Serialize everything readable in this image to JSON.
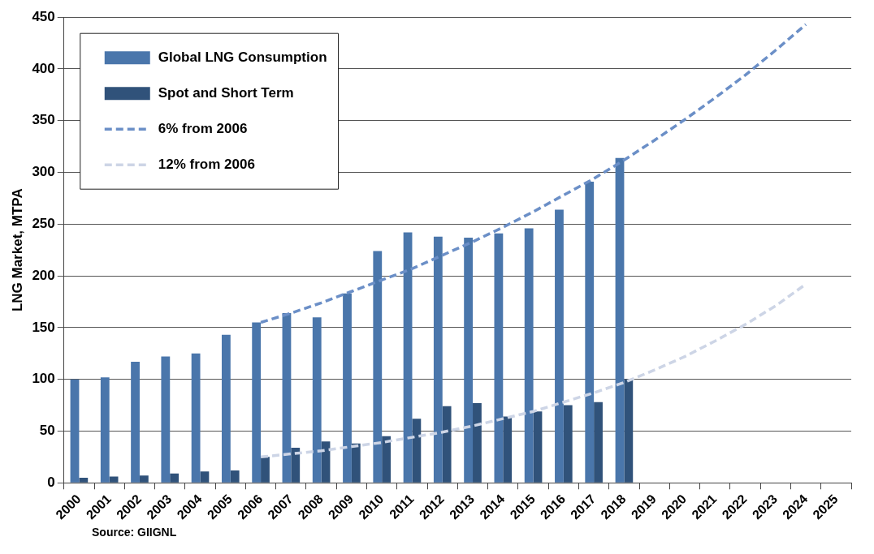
{
  "chart_data": {
    "type": "bar",
    "ylabel": "LNG Market, MTPA",
    "categories": [
      "2000",
      "2001",
      "2002",
      "2003",
      "2004",
      "2005",
      "2006",
      "2007",
      "2008",
      "2009",
      "2010",
      "2011",
      "2012",
      "2013",
      "2014",
      "2015",
      "2016",
      "2017",
      "2018",
      "2019",
      "2020",
      "2021",
      "2022",
      "2023",
      "2024",
      "2025"
    ],
    "series": [
      {
        "name": "Global LNG Consumption",
        "color": "#4a76ab",
        "values": [
          100,
          102,
          117,
          122,
          125,
          143,
          155,
          164,
          160,
          183,
          224,
          242,
          238,
          237,
          241,
          246,
          264,
          291,
          314,
          null,
          null,
          null,
          null,
          null,
          null,
          null
        ]
      },
      {
        "name": "Spot and Short Term",
        "color": "#30527a",
        "values": [
          5,
          6,
          7,
          9,
          11,
          12,
          25,
          34,
          40,
          38,
          45,
          62,
          74,
          77,
          64,
          69,
          75,
          78,
          100,
          null,
          null,
          null,
          null,
          null,
          null,
          null
        ]
      },
      {
        "name": "6% from 2006",
        "type": "line",
        "line_style": "dashed",
        "color": "#6b8fc7",
        "values": [
          null,
          null,
          null,
          null,
          null,
          null,
          155,
          164,
          174,
          185,
          196,
          207,
          220,
          233,
          247,
          262,
          278,
          294,
          312,
          331,
          351,
          372,
          394,
          418,
          443,
          null
        ]
      },
      {
        "name": "12% from 2006",
        "type": "line",
        "line_style": "dashed",
        "color": "#cdd5e6",
        "values": [
          null,
          null,
          null,
          null,
          null,
          null,
          25,
          28,
          31,
          35,
          39,
          44,
          49,
          55,
          62,
          69,
          78,
          87,
          97,
          109,
          122,
          137,
          153,
          171,
          192,
          null
        ]
      }
    ],
    "ylim": [
      0,
      450
    ],
    "yticks": [
      0,
      50,
      100,
      150,
      200,
      250,
      300,
      350,
      400,
      450
    ],
    "grid": "y",
    "legend": "top left",
    "marker": "none",
    "annotations": [
      "Source: GIIGNL"
    ]
  }
}
